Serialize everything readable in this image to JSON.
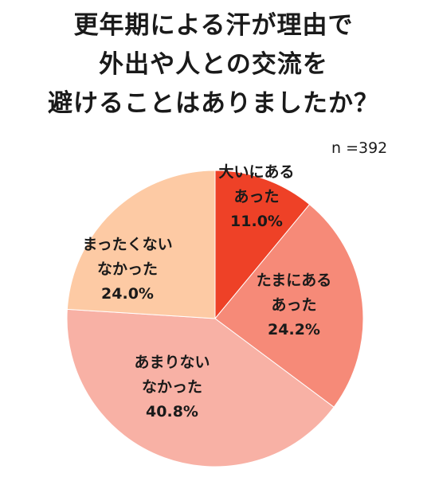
{
  "title_lines": [
    "更年期による汗が理由で",
    "外出や人との交流を",
    "避けることはありましたか？"
  ],
  "sample_size": "n =392",
  "chart_data": {
    "type": "pie",
    "title": "更年期による汗が理由で外出や人との交流を避けることはありましたか？",
    "unit": "%",
    "slices": [
      {
        "label_lines": [
          "大いにある",
          "あった"
        ],
        "value": 11.0,
        "value_label": "11.0%",
        "color": "#ee4127"
      },
      {
        "label_lines": [
          "たまにある",
          "あった"
        ],
        "value": 24.2,
        "value_label": "24.2%",
        "color": "#f68a78"
      },
      {
        "label_lines": [
          "あまりない",
          "なかった"
        ],
        "value": 40.8,
        "value_label": "40.8%",
        "color": "#f8b1a5"
      },
      {
        "label_lines": [
          "まったくない",
          "なかった"
        ],
        "value": 24.0,
        "value_label": "24.0%",
        "color": "#fdcaa4"
      }
    ]
  }
}
